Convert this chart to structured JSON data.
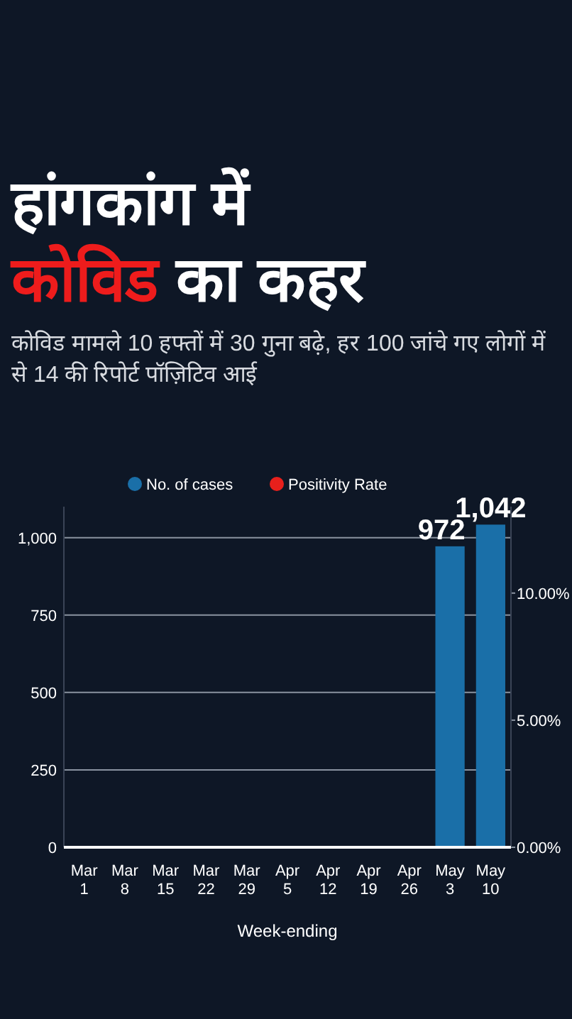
{
  "chart_data": {
    "type": "bar",
    "title": "हांगकांग में कोविड का कहर",
    "subtitle": "कोविड मामले 10 हफ्तों में 30 गुना बढ़े, हर 100 जांचे गए लोगों में से 14 की रिपोर्ट पॉज़िटिव आई",
    "xlabel": "Week-ending",
    "categories": [
      "Mar 1",
      "Mar 8",
      "Mar 15",
      "Mar 22",
      "Mar 29",
      "Apr 5",
      "Apr 12",
      "Apr 19",
      "Apr 26",
      "May 3",
      "May 10"
    ],
    "series": [
      {
        "name": "No. of cases",
        "color": "#1a6fa8",
        "values": [
          null,
          null,
          null,
          null,
          null,
          null,
          null,
          null,
          null,
          972,
          1042
        ],
        "value_labels": [
          null,
          null,
          null,
          null,
          null,
          null,
          null,
          null,
          null,
          "972",
          "1,042"
        ]
      },
      {
        "name": "Positivity Rate",
        "color": "#e8201c",
        "values": [
          null,
          null,
          null,
          null,
          null,
          null,
          null,
          null,
          null,
          null,
          null
        ]
      }
    ],
    "ylim": [
      0,
      1100
    ],
    "yticks": [
      0,
      250,
      500,
      750,
      {
        "value": 1000,
        "label": "1,000"
      }
    ],
    "y2lim": [
      0,
      13.4
    ],
    "y2ticks": [
      {
        "value": 0,
        "label": "0.00%"
      },
      {
        "value": 5,
        "label": "5.00%"
      },
      {
        "value": 10,
        "label": "10.00%"
      }
    ],
    "grid": "y",
    "legend": "top"
  }
}
